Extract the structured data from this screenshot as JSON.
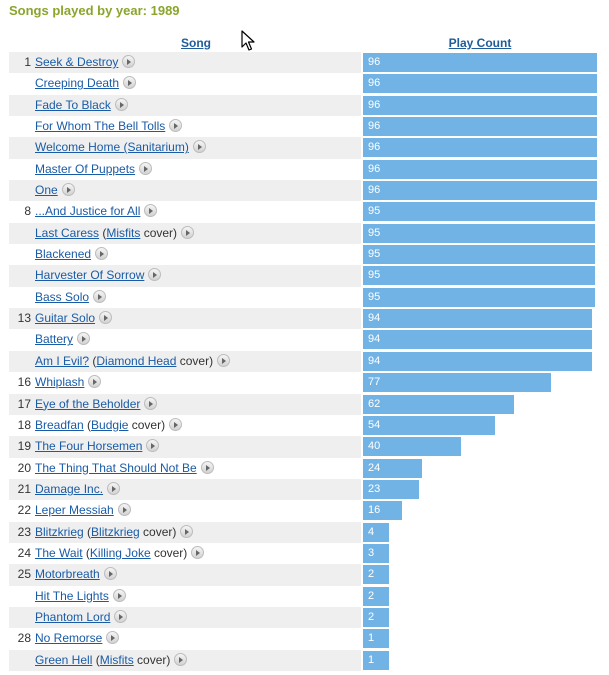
{
  "page": {
    "title": "Songs played by year: 1989"
  },
  "header": {
    "song_label": "Song",
    "count_label": "Play Count"
  },
  "chart_data": {
    "type": "bar",
    "max_value": 96,
    "rows": [
      {
        "rank": "1",
        "title": "Seek & Destroy",
        "value": 96
      },
      {
        "rank": "",
        "title": "Creeping Death",
        "value": 96
      },
      {
        "rank": "",
        "title": "Fade To Black",
        "value": 96
      },
      {
        "rank": "",
        "title": "For Whom The Bell Tolls",
        "value": 96
      },
      {
        "rank": "",
        "title": "Welcome Home (Sanitarium)",
        "value": 96
      },
      {
        "rank": "",
        "title": "Master Of Puppets",
        "value": 96
      },
      {
        "rank": "",
        "title": "One",
        "value": 96
      },
      {
        "rank": "8",
        "title": "...And Justice for All",
        "value": 95
      },
      {
        "rank": "",
        "title": "Last Caress",
        "cover": "Misfits",
        "cover_suffix": " cover)",
        "value": 95
      },
      {
        "rank": "",
        "title": "Blackened",
        "value": 95
      },
      {
        "rank": "",
        "title": "Harvester Of Sorrow",
        "value": 95
      },
      {
        "rank": "",
        "title": "Bass Solo",
        "value": 95
      },
      {
        "rank": "13",
        "title": "Guitar Solo",
        "value": 94
      },
      {
        "rank": "",
        "title": "Battery",
        "value": 94
      },
      {
        "rank": "",
        "title": "Am I Evil?",
        "cover": "Diamond Head",
        "cover_suffix": " cover)",
        "value": 94
      },
      {
        "rank": "16",
        "title": "Whiplash",
        "value": 77
      },
      {
        "rank": "17",
        "title": "Eye of the Beholder",
        "value": 62
      },
      {
        "rank": "18",
        "title": "Breadfan",
        "cover": "Budgie",
        "cover_suffix": " cover)",
        "value": 54
      },
      {
        "rank": "19",
        "title": "The Four Horsemen",
        "value": 40
      },
      {
        "rank": "20",
        "title": "The Thing That Should Not Be",
        "value": 24
      },
      {
        "rank": "21",
        "title": "Damage Inc.",
        "value": 23
      },
      {
        "rank": "22",
        "title": "Leper Messiah",
        "value": 16
      },
      {
        "rank": "23",
        "title": "Blitzkrieg",
        "cover": "Blitzkrieg",
        "cover_suffix": " cover)",
        "value": 4
      },
      {
        "rank": "24",
        "title": "The Wait",
        "cover": "Killing Joke",
        "cover_suffix": " cover)",
        "value": 3
      },
      {
        "rank": "25",
        "title": "Motorbreath",
        "value": 2
      },
      {
        "rank": "",
        "title": "Hit The Lights",
        "value": 2
      },
      {
        "rank": "",
        "title": "Phantom Lord",
        "value": 2
      },
      {
        "rank": "28",
        "title": "No Remorse",
        "value": 1
      },
      {
        "rank": "",
        "title": "Green Hell",
        "cover": "Misfits",
        "cover_suffix": " cover)",
        "value": 1
      }
    ]
  }
}
